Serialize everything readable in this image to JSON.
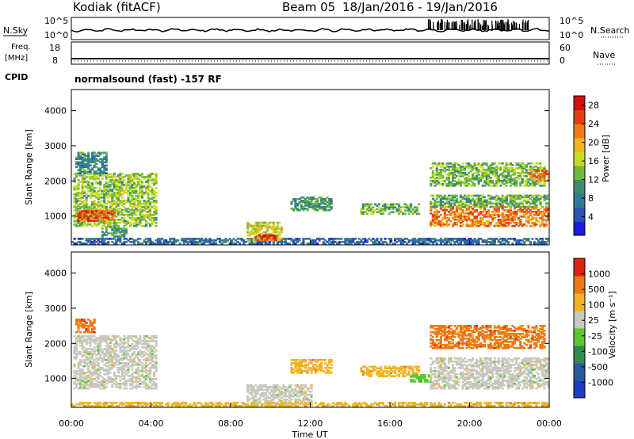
{
  "header": {
    "station": "Kodiak (fitACF)",
    "beam": "Beam 05",
    "date_range": "18/Jan/2016 - 19/Jan/2016"
  },
  "aux_labels": {
    "nsky": "N.Sky",
    "nsearch": "N.Search",
    "freq_line1": "Freq.",
    "freq_line2": "[MHz]",
    "cpid": "CPID",
    "nave": "Nave",
    "cpid_name": "normalsound (fast) -157 RF"
  },
  "noise_axis": {
    "left_top": "10^5",
    "left_bottom": "10^0",
    "right_top": "10^5",
    "right_bottom": "10^0"
  },
  "freq_axis": {
    "left_top": "18",
    "left_bottom": "8",
    "right_top": "60",
    "right_bottom": "0"
  },
  "colors": {
    "background": "#ffffff",
    "axis": "#000000"
  },
  "chart_data": [
    {
      "type": "heatmap",
      "title": "",
      "xlabel": "Time UT",
      "ylabel": "Slant Range [km]",
      "x_ticks": [
        "00:00",
        "04:00",
        "08:00",
        "12:00",
        "16:00",
        "20:00",
        "00:00"
      ],
      "xlim_hours": [
        0,
        24
      ],
      "y_ticks": [
        1000,
        2000,
        3000,
        4000
      ],
      "ylim": [
        180,
        4600
      ],
      "colorbar": {
        "label": "Power [dB]",
        "range": [
          0,
          30
        ],
        "ticks": [
          4,
          8,
          12,
          16,
          20,
          24,
          28
        ],
        "colors": [
          "#1a1ae6",
          "#2a52b8",
          "#2f7a9a",
          "#3d8c6e",
          "#6fbb3c",
          "#c8dc1e",
          "#f0b41e",
          "#f07a14",
          "#e63a14",
          "#d21010"
        ]
      },
      "regions": [
        {
          "t0": 0.1,
          "t1": 4.3,
          "r0": 700,
          "r1": 2200,
          "level": 14
        },
        {
          "t0": 0.3,
          "t1": 2.2,
          "r0": 850,
          "r1": 1150,
          "level": 24
        },
        {
          "t0": 0.2,
          "t1": 1.8,
          "r0": 2200,
          "r1": 2800,
          "level": 9
        },
        {
          "t0": 1.5,
          "t1": 2.8,
          "r0": 400,
          "r1": 700,
          "level": 10
        },
        {
          "t0": 0.0,
          "t1": 24.0,
          "r0": 200,
          "r1": 350,
          "level": 6
        },
        {
          "t0": 8.8,
          "t1": 10.5,
          "r0": 300,
          "r1": 800,
          "level": 16
        },
        {
          "t0": 9.2,
          "t1": 10.2,
          "r0": 300,
          "r1": 450,
          "level": 26
        },
        {
          "t0": 11.0,
          "t1": 13.0,
          "r0": 1150,
          "r1": 1550,
          "level": 10
        },
        {
          "t0": 14.5,
          "t1": 17.5,
          "r0": 1050,
          "r1": 1350,
          "level": 12
        },
        {
          "t0": 18.0,
          "t1": 24.0,
          "r0": 700,
          "r1": 1250,
          "level": 22
        },
        {
          "t0": 18.0,
          "t1": 24.0,
          "r0": 1250,
          "r1": 1600,
          "level": 12
        },
        {
          "t0": 18.0,
          "t1": 23.8,
          "r0": 1850,
          "r1": 2500,
          "level": 13
        },
        {
          "t0": 23.0,
          "t1": 24.0,
          "r0": 2000,
          "r1": 2300,
          "level": 22
        }
      ]
    },
    {
      "type": "heatmap",
      "title": "",
      "xlabel": "Time UT",
      "ylabel": "Slant Range [km]",
      "x_ticks": [
        "00:00",
        "04:00",
        "08:00",
        "12:00",
        "16:00",
        "20:00",
        "00:00"
      ],
      "xlim_hours": [
        0,
        24
      ],
      "y_ticks": [
        1000,
        2000,
        3000,
        4000
      ],
      "ylim": [
        180,
        4600
      ],
      "colorbar": {
        "label": "Velocity [m s⁻¹]",
        "tick_labels": [
          "1000",
          "500",
          "100",
          "25",
          "-25",
          "-100",
          "-500",
          "-1000"
        ],
        "colors": [
          "#1c3cc8",
          "#285aa0",
          "#2f8c50",
          "#5cc830",
          "#c8c8c0",
          "#f0b41e",
          "#f07814",
          "#e02010"
        ]
      },
      "regions": [
        {
          "t0": 0.1,
          "t1": 4.3,
          "r0": 700,
          "r1": 2200,
          "level": 4
        },
        {
          "t0": 0.2,
          "t1": 1.2,
          "r0": 2300,
          "r1": 2700,
          "level": 6
        },
        {
          "t0": 8.8,
          "t1": 12.0,
          "r0": 250,
          "r1": 800,
          "level": 4
        },
        {
          "t0": 11.0,
          "t1": 13.0,
          "r0": 1150,
          "r1": 1550,
          "level": 5
        },
        {
          "t0": 14.5,
          "t1": 17.5,
          "r0": 1050,
          "r1": 1350,
          "level": 5
        },
        {
          "t0": 17.0,
          "t1": 18.0,
          "r0": 900,
          "r1": 1100,
          "level": 3
        },
        {
          "t0": 18.0,
          "t1": 24.0,
          "r0": 700,
          "r1": 1600,
          "level": 4
        },
        {
          "t0": 18.0,
          "t1": 23.8,
          "r0": 1850,
          "r1": 2500,
          "level": 6
        },
        {
          "t0": 0.0,
          "t1": 24.0,
          "r0": 200,
          "r1": 300,
          "level": 5
        }
      ]
    }
  ]
}
